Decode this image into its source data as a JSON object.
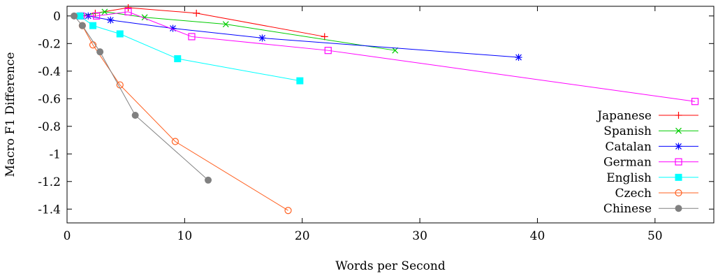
{
  "chart_data": {
    "type": "line",
    "title": "",
    "xlabel": "Words per Second",
    "ylabel": "Macro F1 Difference",
    "xlim": [
      0,
      55
    ],
    "ylim": [
      -1.5,
      0.07
    ],
    "xticks": [
      0,
      10,
      20,
      30,
      40,
      50
    ],
    "xtick_labels": [
      "0",
      "10",
      "20",
      "30",
      "40",
      "50"
    ],
    "yticks": [
      0,
      -0.2,
      -0.4,
      -0.6,
      -0.8,
      -1,
      -1.2,
      -1.4
    ],
    "ytick_labels": [
      "0",
      "-0.2",
      "-0.4",
      "-0.6",
      "-0.8",
      "-1",
      "-1.2",
      "-1.4"
    ],
    "grid": false,
    "legend_position": "bottom-right",
    "series": [
      {
        "name": "Japanese",
        "color": "#ff0000",
        "marker": "plus",
        "x": [
          1.2,
          2.4,
          5.2,
          11.0,
          21.9
        ],
        "y": [
          0.0,
          0.02,
          0.06,
          0.02,
          -0.15
        ]
      },
      {
        "name": "Spanish",
        "color": "#00cc00",
        "marker": "cross",
        "x": [
          1.2,
          3.2,
          6.6,
          13.5,
          27.9
        ],
        "y": [
          0.0,
          0.03,
          -0.01,
          -0.06,
          -0.25
        ]
      },
      {
        "name": "Catalan",
        "color": "#0000ff",
        "marker": "asterisk",
        "x": [
          1.8,
          3.7,
          9.0,
          16.6,
          38.4
        ],
        "y": [
          0.0,
          -0.03,
          -0.09,
          -0.16,
          -0.3
        ]
      },
      {
        "name": "German",
        "color": "#ff00ff",
        "marker": "square-open",
        "x": [
          1.2,
          2.5,
          5.2,
          10.6,
          22.2,
          53.4
        ],
        "y": [
          0.0,
          0.0,
          0.03,
          -0.15,
          -0.25,
          -0.62
        ]
      },
      {
        "name": "English",
        "color": "#00ffff",
        "marker": "square-filled",
        "x": [
          1.1,
          2.2,
          4.5,
          9.4,
          19.8
        ],
        "y": [
          0.0,
          -0.07,
          -0.13,
          -0.31,
          -0.47
        ]
      },
      {
        "name": "Czech",
        "color": "#ff6020",
        "marker": "circle-open",
        "x": [
          1.3,
          2.2,
          4.5,
          9.2,
          18.8
        ],
        "y": [
          -0.07,
          -0.21,
          -0.5,
          -0.91,
          -1.41
        ]
      },
      {
        "name": "Chinese",
        "color": "#808080",
        "marker": "circle-filled",
        "x": [
          0.6,
          1.3,
          2.8,
          5.8,
          12.0
        ],
        "y": [
          0.0,
          -0.07,
          -0.26,
          -0.72,
          -1.19
        ]
      }
    ]
  }
}
